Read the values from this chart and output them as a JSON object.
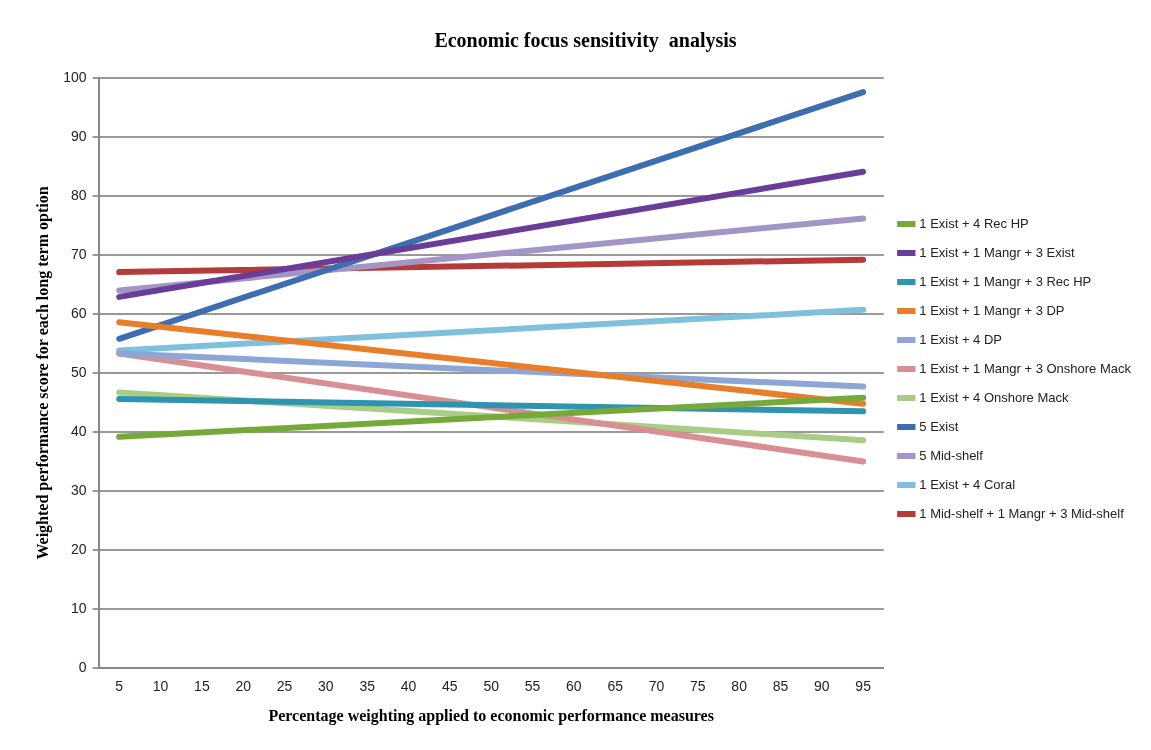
{
  "chart_data": {
    "type": "line",
    "title": "Economic focus sensitivity  analysis",
    "xlabel": "Percentage weighting applied to economic performance measures",
    "ylabel": "Weighted performance score for each long term option",
    "x": [
      5,
      95
    ],
    "xlim": [
      2.5,
      97.5
    ],
    "xticks": [
      5,
      10,
      15,
      20,
      25,
      30,
      35,
      40,
      45,
      50,
      55,
      60,
      65,
      70,
      75,
      80,
      85,
      90,
      95
    ],
    "ylim": [
      0,
      100
    ],
    "yticks": [
      0,
      10,
      20,
      30,
      40,
      50,
      60,
      70,
      80,
      90,
      100
    ],
    "grid": "y",
    "legend": "right",
    "marker": "none",
    "line_style": "solid",
    "series": [
      {
        "name": "1 Exist + 4 Rec HP",
        "color": "#77a83a",
        "values": [
          39.2,
          45.8
        ]
      },
      {
        "name": "1 Exist + 1 Mangr + 3 Exist",
        "color": "#6a3d98",
        "values": [
          62.9,
          84.1
        ]
      },
      {
        "name": "1 Exist + 1 Mangr + 3 Rec HP",
        "color": "#2e94b0",
        "values": [
          45.6,
          43.5
        ]
      },
      {
        "name": "1 Exist + 1 Mangr + 3 DP",
        "color": "#e87e2a",
        "values": [
          58.6,
          44.8
        ]
      },
      {
        "name": "1 Exist + 4 DP",
        "color": "#8ea6d6",
        "values": [
          53.3,
          47.7
        ]
      },
      {
        "name": "1 Exist + 1 Mangr + 3 Onshore Mack",
        "color": "#d88f93",
        "values": [
          53.3,
          35
        ]
      },
      {
        "name": "1 Exist + 4 Onshore Mack",
        "color": "#a9cc86",
        "values": [
          46.7,
          38.6
        ]
      },
      {
        "name": "5 Exist",
        "color": "#3d6eb0",
        "values": [
          55.8,
          97.6
        ]
      },
      {
        "name": "5 Mid-shelf",
        "color": "#a395c6",
        "values": [
          64,
          76.2
        ]
      },
      {
        "name": "1 Exist + 4 Coral",
        "color": "#7fc0dc",
        "values": [
          53.8,
          60.7
        ]
      },
      {
        "name": "1 Mid-shelf + 1 Mangr + 3 Mid-shelf",
        "color": "#b53a3a",
        "values": [
          67.1,
          69.2
        ]
      }
    ]
  }
}
